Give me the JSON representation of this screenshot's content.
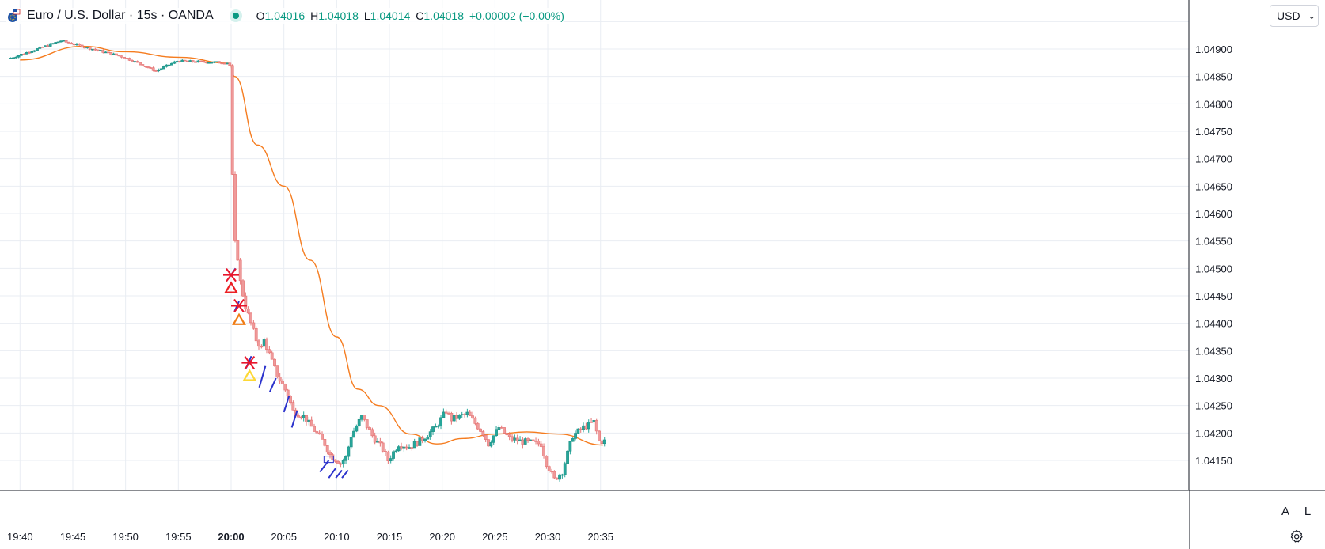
{
  "header": {
    "symbol_title": "Euro / U.S. Dollar · 15s · OANDA",
    "ohlc": {
      "o_label": "O",
      "o_value": "1.04016",
      "h_label": "H",
      "h_value": "1.04018",
      "l_label": "L",
      "l_value": "1.04014",
      "c_label": "C",
      "c_value": "1.04018",
      "change": "+0.00002 (+0.00%)"
    },
    "live_icon": "live-status-dot"
  },
  "currency": {
    "label": "USD",
    "icon": "chevron-down-icon"
  },
  "scale_buttons": {
    "auto": "A",
    "log": "L"
  },
  "settings_icon": "gear-icon",
  "colors": {
    "up": "#26a69a",
    "down": "#ef9a9a",
    "ma": "#f57c1f",
    "grid": "#e9edf3",
    "axis_text": "#131722",
    "trend": "#2b32cc",
    "signal_cross": "#e8152b",
    "tri_red": "#ec2024",
    "tri_orange": "#f07c13",
    "tri_yellow": "#fdd835"
  },
  "chart_data": {
    "type": "candlestick",
    "x_ticks": [
      "19:40",
      "19:45",
      "19:50",
      "19:55",
      "20:00",
      "20:05",
      "20:10",
      "20:15",
      "20:20",
      "20:25",
      "20:30",
      "20:35"
    ],
    "x_ticks_bold": [
      "20:00"
    ],
    "y_ticks": [
      "1.04150",
      "1.04200",
      "1.04250",
      "1.04300",
      "1.04350",
      "1.04400",
      "1.04450",
      "1.04500",
      "1.04550",
      "1.04600",
      "1.04650",
      "1.04700",
      "1.04750",
      "1.04800",
      "1.04850",
      "1.04900"
    ],
    "ylim": [
      1.04105,
      1.04973
    ],
    "timeframe": "15s",
    "grid": true,
    "legend_position": "top-left",
    "price_anchors": [
      [
        "19:39:00",
        1.04882
      ],
      [
        "19:44:00",
        1.04915
      ],
      [
        "19:46:00",
        1.04905
      ],
      [
        "19:50:00",
        1.04885
      ],
      [
        "19:53:00",
        1.0486
      ],
      [
        "19:55:00",
        1.04878
      ],
      [
        "19:59:45",
        1.04875
      ],
      [
        "20:00:00",
        1.0487
      ],
      [
        "20:00:15",
        1.0467
      ],
      [
        "20:00:30",
        1.04545
      ],
      [
        "20:00:45",
        1.0452
      ],
      [
        "20:01:00",
        1.04475
      ],
      [
        "20:01:30",
        1.0443
      ],
      [
        "20:01:45",
        1.04415
      ],
      [
        "20:02:30",
        1.0437
      ],
      [
        "20:03:00",
        1.04355
      ],
      [
        "20:03:15",
        1.0437
      ],
      [
        "20:04:00",
        1.0433
      ],
      [
        "20:04:30",
        1.04305
      ],
      [
        "20:05:30",
        1.0427
      ],
      [
        "20:06:00",
        1.0424
      ],
      [
        "20:07:00",
        1.0423
      ],
      [
        "20:08:00",
        1.04205
      ],
      [
        "20:09:00",
        1.0418
      ],
      [
        "20:09:30",
        1.0416
      ],
      [
        "20:10:30",
        1.04145
      ],
      [
        "20:11:00",
        1.04155
      ],
      [
        "20:11:30",
        1.04195
      ],
      [
        "20:12:30",
        1.0423
      ],
      [
        "20:13:30",
        1.04195
      ],
      [
        "20:14:30",
        1.0417
      ],
      [
        "20:15:00",
        1.0415
      ],
      [
        "20:16:00",
        1.0418
      ],
      [
        "20:17:00",
        1.04175
      ],
      [
        "20:18:00",
        1.04185
      ],
      [
        "20:19:30",
        1.0421
      ],
      [
        "20:20:30",
        1.0424
      ],
      [
        "20:21:00",
        1.04225
      ],
      [
        "20:22:30",
        1.04235
      ],
      [
        "20:24:00",
        1.042
      ],
      [
        "20:24:30",
        1.0418
      ],
      [
        "20:25:30",
        1.0421
      ],
      [
        "20:26:30",
        1.0419
      ],
      [
        "20:27:30",
        1.04185
      ],
      [
        "20:29:30",
        1.0418
      ],
      [
        "20:30:00",
        1.04145
      ],
      [
        "20:30:45",
        1.04115
      ],
      [
        "20:31:30",
        1.0413
      ],
      [
        "20:32:30",
        1.04195
      ],
      [
        "20:33:30",
        1.0421
      ],
      [
        "20:34:30",
        1.0422
      ],
      [
        "20:35:00",
        1.04185
      ]
    ],
    "moving_average": [
      [
        "19:40:00",
        1.0488
      ],
      [
        "19:46:00",
        1.04905
      ],
      [
        "19:50:00",
        1.04895
      ],
      [
        "19:55:00",
        1.04885
      ],
      [
        "19:59:50",
        1.04874
      ],
      [
        "20:00:20",
        1.0485
      ],
      [
        "20:02:30",
        1.04725
      ],
      [
        "20:05:00",
        1.0465
      ],
      [
        "20:07:30",
        1.04515
      ],
      [
        "20:10:00",
        1.04375
      ],
      [
        "20:12:00",
        1.0428
      ],
      [
        "20:14:00",
        1.0425
      ],
      [
        "20:17:00",
        1.04198
      ],
      [
        "20:19:30",
        1.0418
      ],
      [
        "20:22:00",
        1.0419
      ],
      [
        "20:25:00",
        1.04198
      ],
      [
        "20:28:00",
        1.04202
      ],
      [
        "20:31:00",
        1.04198
      ],
      [
        "20:35:15",
        1.04178
      ]
    ],
    "trend_segments": [
      [
        [
          "20:00:00",
          1.04488
        ],
        [
          "20:00:25",
          1.045
        ]
      ],
      [
        [
          "20:00:20",
          1.04422
        ],
        [
          "20:00:45",
          1.0444
        ]
      ],
      [
        [
          "20:01:25",
          1.04318
        ],
        [
          "20:01:55",
          1.0434
        ]
      ],
      [
        [
          "20:02:40",
          1.04283
        ],
        [
          "20:03:15",
          1.04322
        ]
      ],
      [
        [
          "20:03:40",
          1.04275
        ],
        [
          "20:04:15",
          1.043
        ]
      ],
      [
        [
          "20:05:00",
          1.04238
        ],
        [
          "20:05:30",
          1.04268
        ]
      ],
      [
        [
          "20:05:45",
          1.0421
        ],
        [
          "20:06:15",
          1.0424
        ]
      ],
      [
        [
          "20:08:25",
          1.04129
        ],
        [
          "20:09:15",
          1.0415
        ]
      ],
      [
        [
          "20:09:15",
          1.04118
        ],
        [
          "20:09:55",
          1.04136
        ]
      ],
      [
        [
          "20:09:55",
          1.04118
        ],
        [
          "20:10:30",
          1.04132
        ]
      ],
      [
        [
          "20:10:30",
          1.04118
        ],
        [
          "20:11:05",
          1.04132
        ]
      ]
    ],
    "signals": [
      {
        "time": "20:00:00",
        "cross": 1.04488,
        "triangle": 1.04465,
        "color": "tri_red"
      },
      {
        "time": "20:00:45",
        "cross": 1.04432,
        "triangle": 1.04407,
        "color": "tri_orange"
      },
      {
        "time": "20:01:45",
        "cross": 1.04328,
        "triangle": 1.04305,
        "color": "tri_yellow"
      }
    ],
    "marker_box": {
      "time": "20:09:15",
      "price": 1.04152
    }
  }
}
